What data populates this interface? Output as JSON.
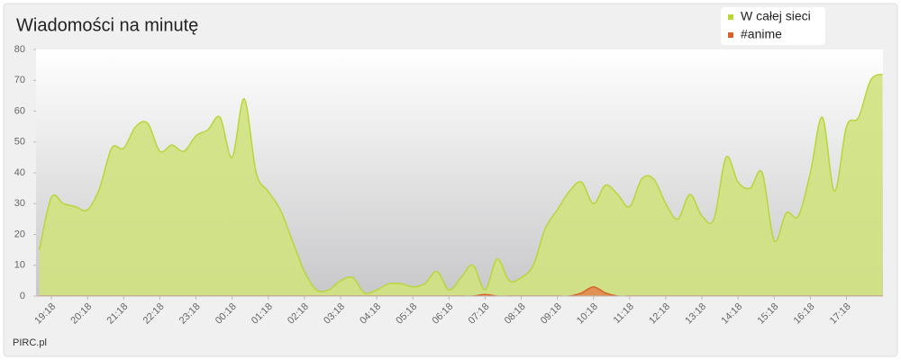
{
  "chart_data": {
    "type": "area",
    "title": "Wiadomości na minutę",
    "credit": "PIRC.pl",
    "categories": [
      null,
      "19:18",
      null,
      null,
      "20:18",
      null,
      null,
      "21:18",
      null,
      null,
      "22:18",
      null,
      null,
      "23:18",
      null,
      null,
      "00:18",
      null,
      null,
      "01:18",
      null,
      null,
      "02:18",
      null,
      null,
      "03:18",
      null,
      null,
      "04:18",
      null,
      null,
      "05:18",
      null,
      null,
      "06:18",
      null,
      null,
      "07:18",
      null,
      null,
      "08:18",
      null,
      null,
      "09:18",
      null,
      null,
      "10:18",
      null,
      null,
      "11:18",
      null,
      null,
      "12:18",
      null,
      null,
      "13:18",
      null,
      null,
      "14:18",
      null,
      null,
      "15:18",
      null,
      null,
      "16:18",
      null,
      null,
      "17:18",
      null,
      null,
      null
    ],
    "series": [
      {
        "name": "W całej sieci",
        "color": "#b8d63a",
        "fill": "#cfe27f",
        "values": [
          15,
          32,
          30,
          29,
          28,
          35,
          48,
          48,
          55,
          56,
          47,
          49,
          47,
          52,
          54,
          58,
          45,
          64,
          40,
          34,
          28,
          18,
          8,
          2,
          2,
          5,
          6,
          1,
          2,
          4,
          4,
          3,
          4,
          8,
          2,
          6,
          10,
          2,
          12,
          5,
          6,
          10,
          22,
          28,
          34,
          37,
          30,
          36,
          33,
          29,
          38,
          38,
          30,
          25,
          33,
          26,
          25,
          45,
          37,
          35,
          40,
          18,
          27,
          26,
          40,
          58,
          34,
          55,
          58,
          70,
          72
        ]
      },
      {
        "name": "#anime",
        "color": "#d9622b",
        "fill": "#e0894f",
        "values": [
          0,
          0,
          0,
          0,
          0,
          0,
          0,
          0,
          0,
          0,
          0,
          0,
          0,
          0,
          0,
          0,
          0,
          0,
          0,
          0,
          0,
          0,
          0,
          0,
          0,
          0,
          0,
          0,
          0,
          0,
          0,
          0,
          0,
          0,
          0,
          0,
          0,
          0.5,
          0,
          0,
          0,
          0,
          0,
          0,
          0,
          1,
          3,
          1,
          0,
          0,
          0,
          0,
          0,
          0,
          0,
          0,
          0,
          0,
          0,
          0,
          0,
          0,
          0,
          0,
          0,
          0,
          0,
          0,
          0,
          0,
          0
        ]
      }
    ],
    "ylim": [
      0,
      80
    ],
    "yticks": [
      0,
      10,
      20,
      30,
      40,
      50,
      60,
      70,
      80
    ],
    "legend": "top-right"
  }
}
